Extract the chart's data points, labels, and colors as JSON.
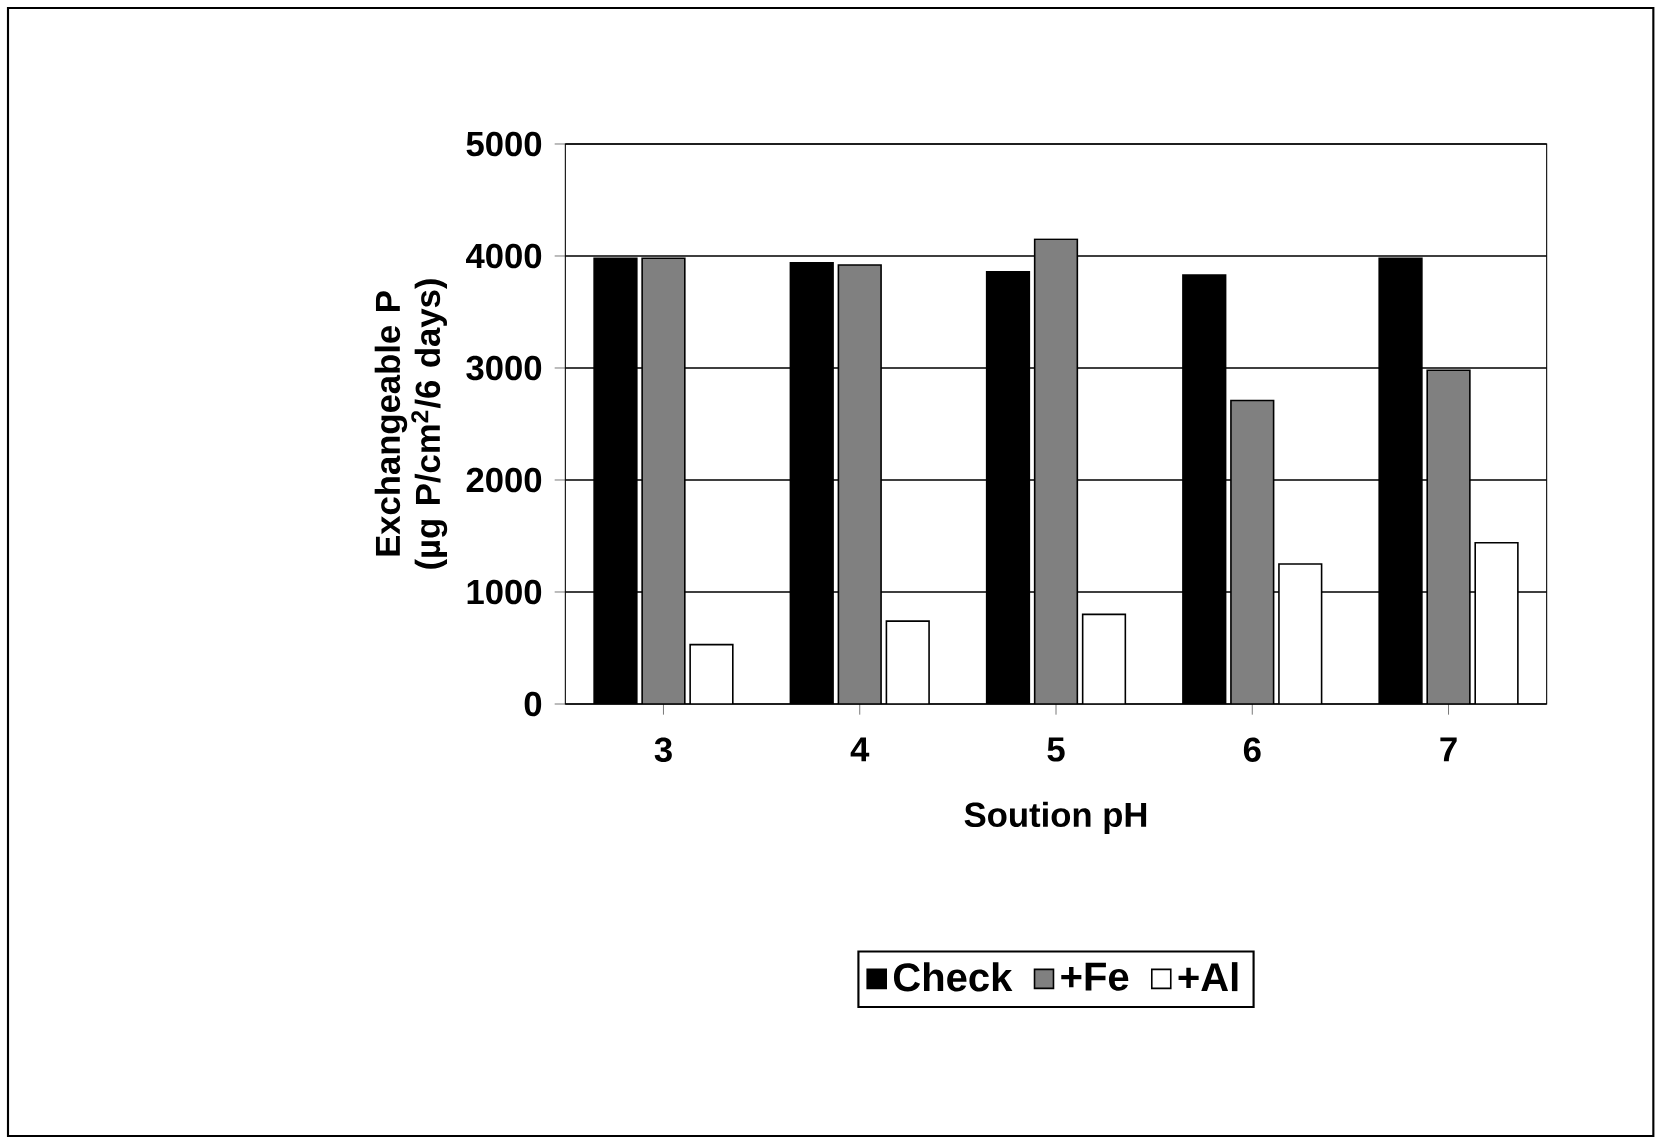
{
  "chart_data": {
    "type": "bar",
    "xlabel": "Soution pH",
    "ylabel": "Exchangeable P (µg P/cm$^{2}$/6 days)",
    "categories": [
      "3",
      "4",
      "5",
      "6",
      "7"
    ],
    "series": [
      {
        "name": "Check",
        "color": "#000000",
        "values": [
          3980,
          3940,
          3860,
          3830,
          3980
        ]
      },
      {
        "name": "+Fe",
        "color": "#808080",
        "values": [
          3980,
          3920,
          4150,
          2710,
          2980
        ]
      },
      {
        "name": "+Al",
        "color": "#ffffff",
        "values": [
          530,
          740,
          800,
          1250,
          1440
        ]
      }
    ],
    "ylim": [
      0,
      5000
    ],
    "yticks": [
      0,
      1000,
      2000,
      3000,
      4000,
      5000
    ],
    "grid": "y",
    "legend": "bottom"
  }
}
